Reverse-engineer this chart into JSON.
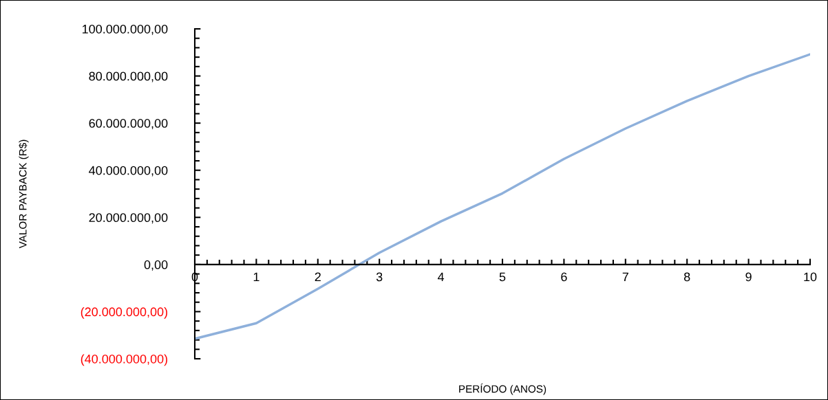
{
  "chart_data": {
    "type": "line",
    "xlabel": "PERÍODO (ANOS)",
    "ylabel": "VALOR PAYBACK (R$)",
    "x": [
      0,
      1,
      2,
      3,
      4,
      5,
      6,
      7,
      8,
      9,
      10
    ],
    "series": [
      {
        "color": "#8eb0db",
        "values": [
          -31500000,
          -24900000,
          -10300000,
          5000000,
          18300000,
          30200000,
          44800000,
          57700000,
          69400000,
          80000000,
          89200000
        ]
      }
    ],
    "xlim": [
      0,
      10
    ],
    "xticks": [
      0,
      1,
      2,
      3,
      4,
      5,
      6,
      7,
      8,
      9,
      10
    ],
    "ylim": [
      -40000000,
      100000000
    ],
    "yticks": [
      {
        "value": -40000000,
        "label": "(40.000.000,00)"
      },
      {
        "value": -20000000,
        "label": "(20.000.000,00)"
      },
      {
        "value": 0,
        "label": "0,00"
      },
      {
        "value": 20000000,
        "label": "20.000.000,00"
      },
      {
        "value": 40000000,
        "label": "40.000.000,00"
      },
      {
        "value": 60000000,
        "label": "60.000.000,00"
      },
      {
        "value": 80000000,
        "label": "80.000.000,00"
      },
      {
        "value": 100000000,
        "label": "100.000.000,00"
      }
    ],
    "grid": false,
    "marker": "none",
    "line_style": "solid",
    "legend": false
  }
}
